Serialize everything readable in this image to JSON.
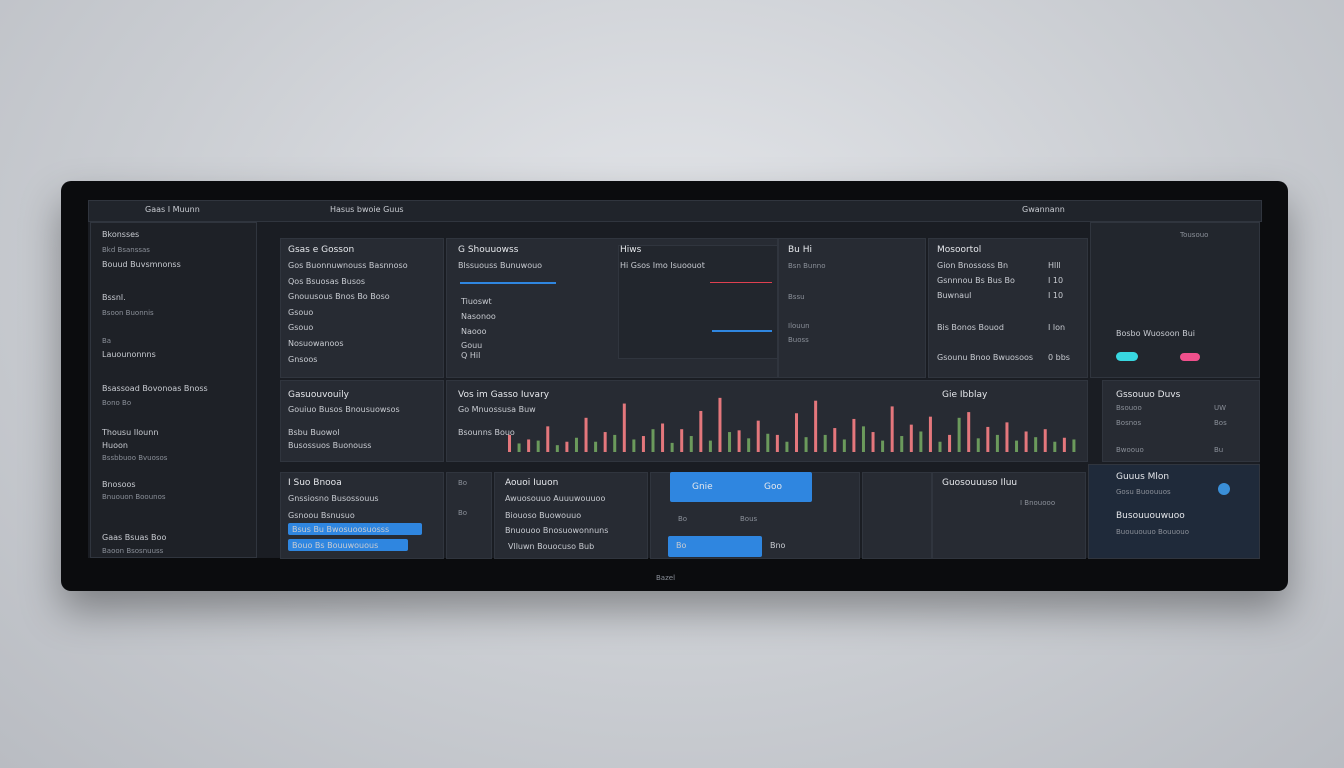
{
  "top_bar": {
    "app_title": "Gaas I Muunn",
    "breadcrumb": "Hasus bwoie Guus",
    "account": "Gwannann"
  },
  "sidebar": {
    "items": [
      "Bkonsses",
      "Bkd Bsanssas",
      "Bouud Buvsmnonss",
      "Bssnl.",
      "Bsoon Buonnis",
      "Ba",
      "Lauounonnns",
      "Bsassoad Bovonoas Bnoss",
      "Bono Bo",
      "Thousu Ilounn",
      "Huoon",
      "Bssbbuoo Bvuosos",
      "Bnosoos",
      "Bnuouon Boounos",
      "Gaas Bsuas Boo",
      "Baoon Bsosnuuss"
    ]
  },
  "panel_a": {
    "title": "Gsas e Gosson",
    "lines": [
      "Gos Buonnuwnouss Basnnoso",
      "Qos Bsuosas Busos",
      "Gnouusous Bnos Bo Boso",
      "Gsouo",
      "Gsouo",
      "Nosuowanoos",
      "Gnsoos"
    ]
  },
  "panel_b": {
    "title": "G Shouuowss",
    "subtitle": "Blssuouss Bunuwouo",
    "rows": [
      "Tiuoswt",
      "Nasonoo",
      "Naooo",
      "Gouu",
      "Q Hil"
    ]
  },
  "panel_c": {
    "title": "Hiws",
    "subtitle": "Hi Gsos Imo Isuoouot"
  },
  "panel_d": {
    "title": "Bu Hi",
    "rows": [
      "Bsn Bunno",
      "Bssu",
      "Ilouun",
      "Buoss"
    ]
  },
  "panel_e": {
    "title": "Mosoortol",
    "rows": [
      [
        "Gion Bnossoss Bn",
        "Hlll"
      ],
      [
        "Gsnnnou Bs Bus Bo",
        "I 10"
      ],
      [
        "Buwnaul",
        "I 10"
      ],
      [
        "Bis Bonos Bouod",
        "I lon"
      ],
      [
        "Gsounu Bnoo Bwuosoos",
        "0 bbs"
      ]
    ]
  },
  "right_top": {
    "title": "Tousouo",
    "label": "Bosbo Wuosoon Bui"
  },
  "panel_f": {
    "title": "Gasuouvouily",
    "lines": [
      "Gouiuo Busos Bnousuowsos",
      "Bsbu Buowol",
      "Busossuos Buonouss"
    ]
  },
  "volume_chart": {
    "type": "bar",
    "title": "Vos im Gasso Iuvary",
    "subtitle": "Go Mnuossusa Buw",
    "caption": "Bsounns Bouo",
    "side_title": "Gie Ibblay",
    "ylim": [
      0,
      100
    ],
    "series": [
      {
        "color": "#e4777c",
        "values": [
          30,
          22,
          45,
          18,
          60,
          35,
          85,
          28,
          50,
          40,
          72,
          95,
          38,
          55,
          30,
          68,
          90,
          42,
          58,
          35,
          80,
          48,
          62,
          30,
          70,
          44,
          52,
          36,
          40,
          25
        ]
      },
      {
        "color": "#6b9a5c",
        "values": [
          15,
          20,
          12,
          25,
          18,
          30,
          22,
          40,
          16,
          28,
          20,
          35,
          24,
          32,
          18,
          26,
          30,
          22,
          45,
          20,
          28,
          36,
          18,
          60,
          24,
          30,
          20,
          26,
          18,
          22
        ]
      }
    ]
  },
  "right_mid": {
    "title": "Gssouuo Duvs",
    "rows": [
      [
        "Bsouoo",
        "UW"
      ],
      [
        "Bosnos",
        "Bos"
      ],
      [
        "Bwoouo",
        "Bu"
      ]
    ]
  },
  "panel_g": {
    "title": "I Suo Bnooa",
    "lines": [
      "Gnssiosno Busossouus",
      "Gsnoou Bsnusuo"
    ],
    "buttons": [
      "Bsus Bu Bwosuoosuosss",
      "Bouo Bs Bouuwouous"
    ]
  },
  "panel_h": {
    "lines": [
      "Bo",
      "Bo"
    ]
  },
  "panel_i": {
    "title": "Aouoi Iuuon",
    "lines": [
      "Awuosouuo Auuuwouuoo",
      "Biouoso Buowouuo",
      "Bnuouoo Bnosuowonnuns"
    ],
    "footer": "Vlluwn Bouocuso Bub"
  },
  "panel_j": {
    "tabs": [
      "Gnie",
      "Goo"
    ],
    "row": [
      "Bo",
      "Bous"
    ],
    "footer": [
      "Bo",
      "Bno"
    ]
  },
  "panel_k": {
    "title": "Guosouuuso Iluu",
    "label": "I Bnouooo"
  },
  "right_bottom": {
    "lines": [
      "Guuus Mlon",
      "Gosu Buoouuos",
      "Busouuouwuoo",
      "Buouuouuo Bouuouo"
    ]
  },
  "stand_label": "Bazel"
}
